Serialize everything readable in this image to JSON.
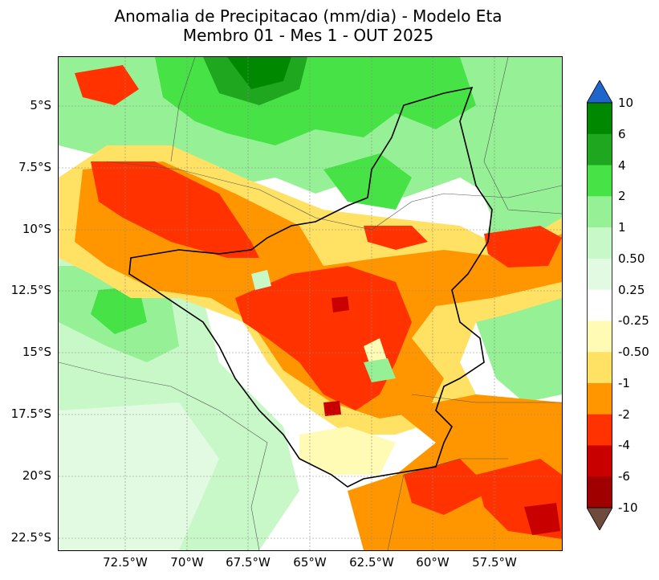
{
  "map": {
    "title_line1": "Anomalia de Precipitacao (mm/dia) - Modelo Eta",
    "title_line2": "Membro 01 - Mes 1 - OUT 2025",
    "variable": "Anomalia de Precipitacao",
    "units": "mm/dia",
    "lat_ticks": [
      "5°S",
      "7.5°S",
      "10°S",
      "12.5°S",
      "15°S",
      "17.5°S",
      "20°S",
      "22.5°S"
    ],
    "lon_ticks": [
      "72.5°W",
      "70°W",
      "67.5°W",
      "65°W",
      "62.5°W",
      "60°W",
      "57.5°W"
    ],
    "region_outline": "basin boundary (black)",
    "colorbar": {
      "labels": [
        "10",
        "6",
        "4",
        "2",
        "1",
        "0.50",
        "0.25",
        "-0.25",
        "-0.50",
        "-1",
        "-2",
        "-4",
        "-6",
        "-10"
      ],
      "colors_top_to_bottom": [
        "#1f66cc",
        "#008800",
        "#1fa81f",
        "#46e246",
        "#96f096",
        "#c8f8c8",
        "#e1fae1",
        "#ffffff",
        "#fffab4",
        "#ffe164",
        "#ff9600",
        "#ff3200",
        "#c80000",
        "#a00000",
        "#6e4b3c"
      ]
    }
  }
}
